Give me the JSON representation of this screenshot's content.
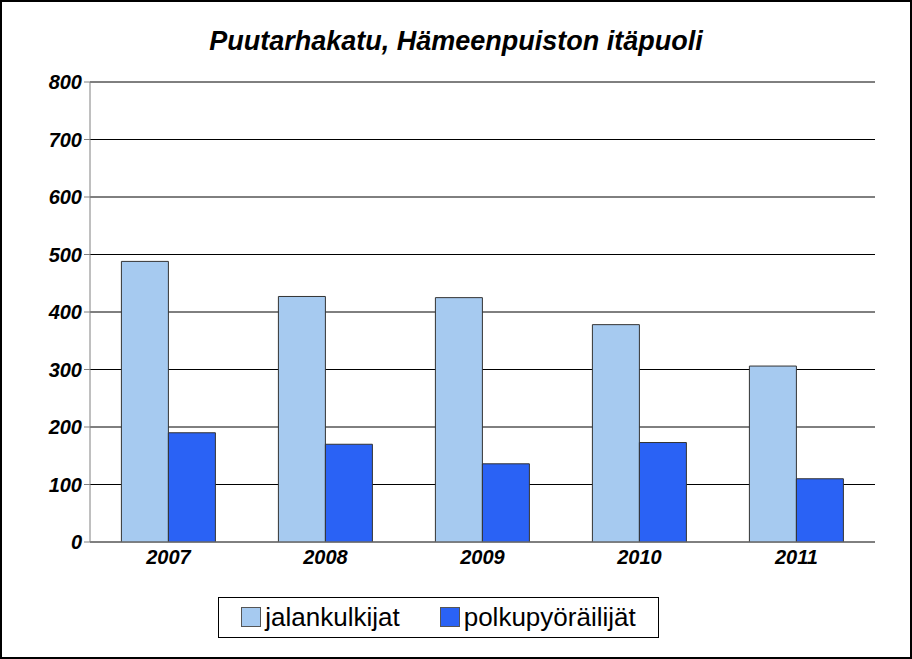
{
  "chart_data": {
    "type": "bar",
    "title": "Puutarhakatu, Hämeenpuiston itäpuoli",
    "categories": [
      "2007",
      "2008",
      "2009",
      "2010",
      "2011"
    ],
    "series": [
      {
        "name": "jalankulkijat",
        "color": "#a6caf0",
        "values": [
          488,
          427,
          425,
          378,
          306
        ]
      },
      {
        "name": "polkupyöräilijät",
        "color": "#2a62f5",
        "values": [
          190,
          170,
          136,
          173,
          110
        ]
      }
    ],
    "ylim": [
      0,
      800
    ],
    "yticks": [
      0,
      100,
      200,
      300,
      400,
      500,
      600,
      700,
      800
    ],
    "grid": true,
    "legend": "bottom"
  }
}
